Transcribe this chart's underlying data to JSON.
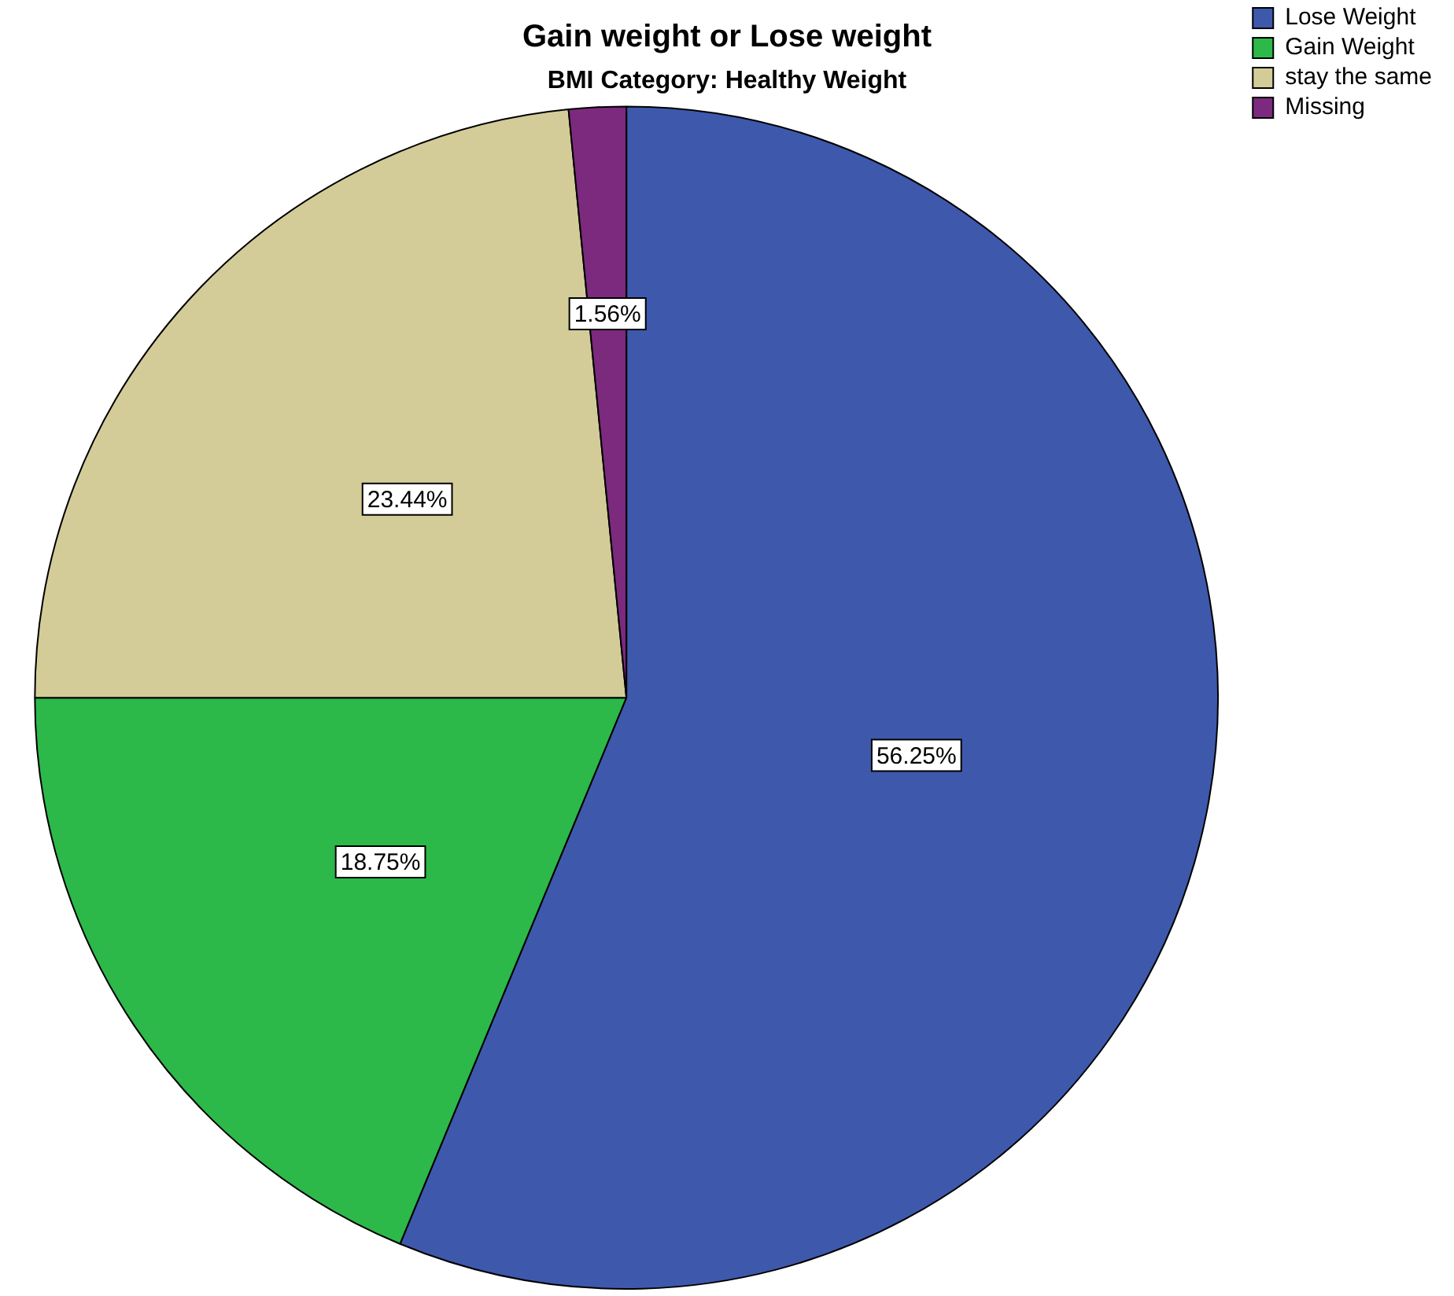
{
  "chart_data": {
    "type": "pie",
    "title": "Gain weight or Lose weight",
    "subtitle": "BMI Category: Healthy Weight",
    "categories": [
      "Lose Weight",
      "Gain Weight",
      "stay the same",
      "Missing"
    ],
    "values": [
      56.25,
      18.75,
      23.44,
      1.56
    ],
    "value_labels": [
      "56.25%",
      "18.75%",
      "23.44%",
      "1.56%"
    ],
    "colors": [
      "#3e58ac",
      "#2db84a",
      "#d4cc98",
      "#7b2a7e"
    ],
    "legend": "top right"
  }
}
